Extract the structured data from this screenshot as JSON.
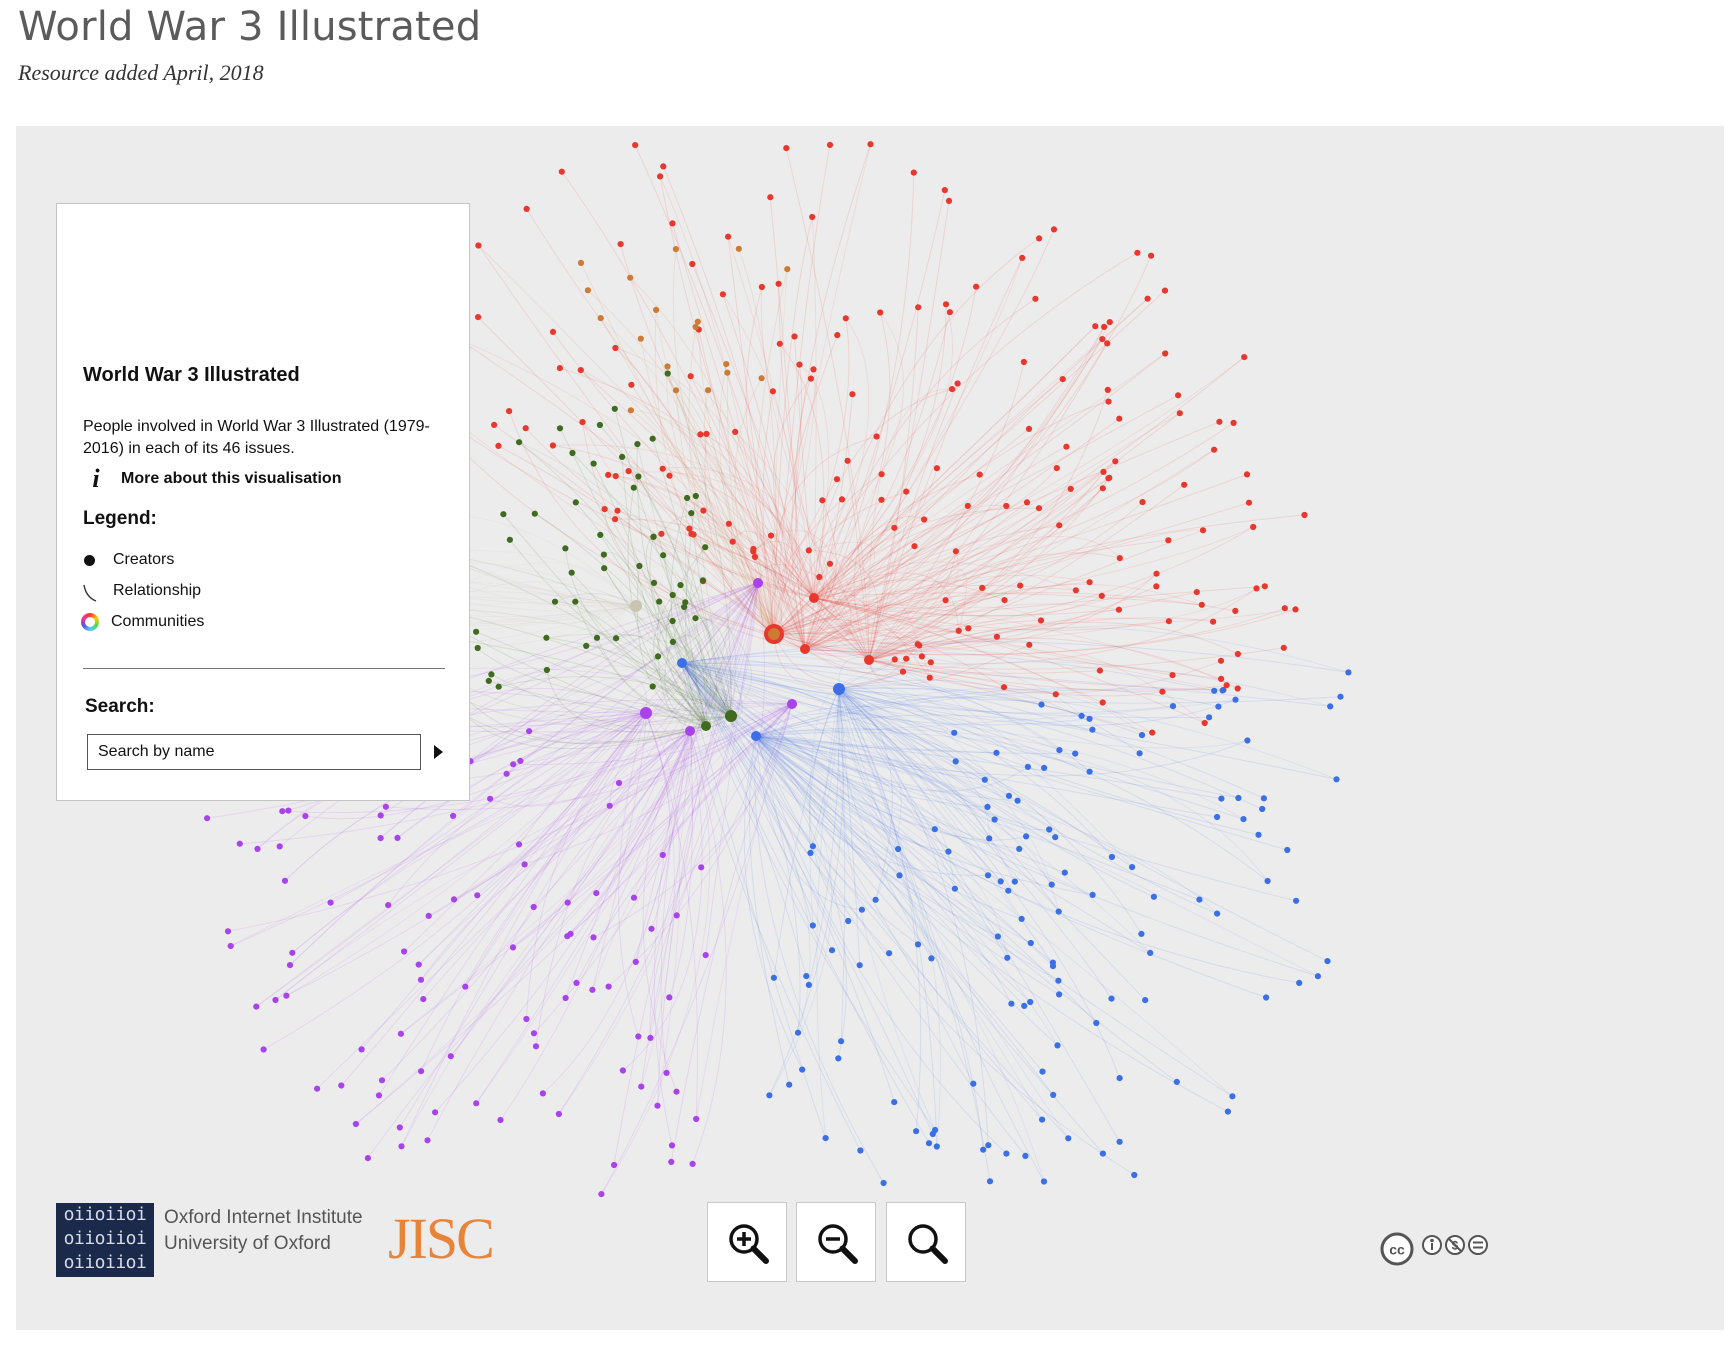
{
  "page": {
    "title": "World War 3 Illustrated",
    "subtitle": "Resource added April, 2018"
  },
  "panel": {
    "title": "World War 3 Illustrated",
    "description": "People involved in World War 3 Illustrated (1979-2016) in each of its 46 issues.",
    "more_label": "More about this visualisation",
    "legend_title": "Legend:",
    "legend": [
      {
        "label": "Creators",
        "icon": "dot-icon"
      },
      {
        "label": "Relationship",
        "icon": "curve-icon"
      },
      {
        "label": "Communities",
        "icon": "color-wheel-icon"
      }
    ],
    "search_label": "Search:",
    "search_placeholder": "Search by name"
  },
  "footer": {
    "oii_logo_rows": [
      "oiioiioi",
      "oiioiioi",
      "oiioiioi"
    ],
    "oii_line1": "Oxford Internet Institute",
    "oii_line2": "University of Oxford",
    "jisc": "JISC",
    "license": "cc by-nc-nd"
  },
  "zoom_controls": [
    "zoom-in-icon",
    "zoom-out-icon",
    "zoom-reset-icon"
  ],
  "communities": [
    {
      "color": "#e8382d",
      "nodes": 190
    },
    {
      "color": "#a843ec",
      "nodes": 120
    },
    {
      "color": "#3a6fe6",
      "nodes": 150
    },
    {
      "color": "#3f6b1e",
      "nodes": 60
    },
    {
      "color": "#cd7a33",
      "nodes": 18
    },
    {
      "color": "#c9c4ae",
      "nodes": 20
    }
  ]
}
